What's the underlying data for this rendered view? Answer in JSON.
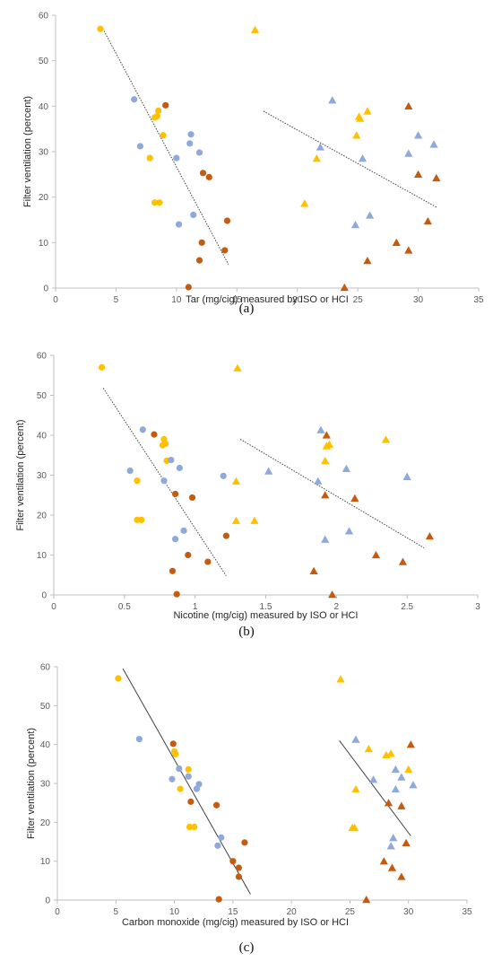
{
  "colors": {
    "yellow": "#FFC000",
    "blue": "#8EA9DB",
    "orange": "#C55A11",
    "axis": "#BFBFBF",
    "trend": "#404040"
  },
  "chart_data": [
    {
      "type": "scatter",
      "caption": "(a)",
      "xlabel": "Tar (mg/cig) measured by ISO or HCI",
      "ylabel": "Filter ventilation (percent)",
      "xlim": [
        0,
        35
      ],
      "ylim": [
        0,
        60
      ],
      "xticks": [
        "0",
        "5",
        "10",
        "15",
        "20",
        "25",
        "30",
        "35"
      ],
      "yticks": [
        "0",
        "10",
        "20",
        "30",
        "40",
        "50",
        "60"
      ],
      "series": [
        {
          "marker": "circle",
          "color": "yellow",
          "points": [
            [
              3.7,
              57
            ],
            [
              8.2,
              37.5
            ],
            [
              8.4,
              37.8
            ],
            [
              8.5,
              39
            ],
            [
              8.9,
              33.6
            ],
            [
              7.8,
              28.6
            ],
            [
              8.2,
              18.8
            ],
            [
              8.6,
              18.8
            ]
          ]
        },
        {
          "marker": "circle",
          "color": "blue",
          "points": [
            [
              6.5,
              41.5
            ],
            [
              7.0,
              31.2
            ],
            [
              11.2,
              33.8
            ],
            [
              11.1,
              31.8
            ],
            [
              11.9,
              29.8
            ],
            [
              10.0,
              28.6
            ],
            [
              11.4,
              16.1
            ],
            [
              10.2,
              14.0
            ]
          ]
        },
        {
          "marker": "circle",
          "color": "orange",
          "points": [
            [
              9.1,
              40.2
            ],
            [
              12.2,
              25.3
            ],
            [
              12.7,
              24.4
            ],
            [
              14.2,
              14.8
            ],
            [
              12.1,
              10.0
            ],
            [
              14.0,
              8.3
            ],
            [
              11.9,
              6.1
            ],
            [
              11.0,
              0.2
            ]
          ]
        },
        {
          "marker": "triangle",
          "color": "yellow",
          "points": [
            [
              16.5,
              56.8
            ],
            [
              25.8,
              38.9
            ],
            [
              25.1,
              37.7
            ],
            [
              25.2,
              37.3
            ],
            [
              24.9,
              33.6
            ],
            [
              21.6,
              28.5
            ],
            [
              20.6,
              18.6
            ]
          ]
        },
        {
          "marker": "triangle",
          "color": "blue",
          "points": [
            [
              22.9,
              41.3
            ],
            [
              21.9,
              31.0
            ],
            [
              30.0,
              33.6
            ],
            [
              31.3,
              31.6
            ],
            [
              29.2,
              29.6
            ],
            [
              25.4,
              28.5
            ],
            [
              26.0,
              16.0
            ],
            [
              24.8,
              13.9
            ]
          ]
        },
        {
          "marker": "triangle",
          "color": "orange",
          "points": [
            [
              29.2,
              40.0
            ],
            [
              30.0,
              25.0
            ],
            [
              31.5,
              24.2
            ],
            [
              30.8,
              14.7
            ],
            [
              28.2,
              10.0
            ],
            [
              29.2,
              8.3
            ],
            [
              25.8,
              6.0
            ],
            [
              23.9,
              0.1
            ]
          ]
        }
      ],
      "trendlines": [
        {
          "from": [
            3.8,
            57.6
          ],
          "to": [
            14.3,
            5.2
          ]
        },
        {
          "from": [
            17.2,
            38.9
          ],
          "to": [
            31.5,
            17.8
          ]
        }
      ]
    },
    {
      "type": "scatter",
      "caption": "(b)",
      "xlabel": "Nicotine (mg/cig) measured by ISO or HCI",
      "ylabel": "Filter ventilation (percent)",
      "xlim": [
        0,
        3
      ],
      "ylim": [
        0,
        60
      ],
      "xticks": [
        "0",
        "0.5",
        "1",
        "1.5",
        "2",
        "2.5",
        "3"
      ],
      "yticks": [
        "0",
        "10",
        "20",
        "30",
        "40",
        "50",
        "60"
      ],
      "series": [
        {
          "marker": "circle",
          "color": "yellow",
          "points": [
            [
              0.34,
              57
            ],
            [
              0.77,
              37.5
            ],
            [
              0.79,
              37.9
            ],
            [
              0.78,
              39
            ],
            [
              0.8,
              33.6
            ],
            [
              0.59,
              28.6
            ],
            [
              0.59,
              18.8
            ],
            [
              0.62,
              18.8
            ]
          ]
        },
        {
          "marker": "circle",
          "color": "blue",
          "points": [
            [
              0.63,
              41.4
            ],
            [
              0.54,
              31.1
            ],
            [
              0.83,
              33.8
            ],
            [
              0.89,
              31.8
            ],
            [
              1.2,
              29.8
            ],
            [
              0.78,
              28.6
            ],
            [
              0.92,
              16.1
            ],
            [
              0.86,
              14.0
            ]
          ]
        },
        {
          "marker": "circle",
          "color": "orange",
          "points": [
            [
              0.71,
              40.2
            ],
            [
              0.86,
              25.3
            ],
            [
              0.98,
              24.4
            ],
            [
              1.22,
              14.8
            ],
            [
              0.95,
              10.0
            ],
            [
              1.09,
              8.3
            ],
            [
              0.84,
              6.0
            ],
            [
              0.87,
              0.2
            ]
          ]
        },
        {
          "marker": "triangle",
          "color": "yellow",
          "points": [
            [
              1.3,
              56.8
            ],
            [
              2.35,
              38.9
            ],
            [
              1.95,
              37.7
            ],
            [
              1.93,
              37.3
            ],
            [
              1.92,
              33.6
            ],
            [
              1.29,
              28.5
            ],
            [
              1.29,
              18.6
            ],
            [
              1.42,
              18.6
            ]
          ]
        },
        {
          "marker": "triangle",
          "color": "blue",
          "points": [
            [
              1.89,
              41.3
            ],
            [
              1.52,
              31.0
            ],
            [
              2.07,
              31.6
            ],
            [
              2.5,
              29.6
            ],
            [
              1.87,
              28.5
            ],
            [
              2.09,
              16.0
            ],
            [
              1.92,
              13.9
            ]
          ]
        },
        {
          "marker": "triangle",
          "color": "orange",
          "points": [
            [
              1.93,
              40.0
            ],
            [
              1.92,
              25.0
            ],
            [
              2.13,
              24.2
            ],
            [
              2.66,
              14.7
            ],
            [
              2.28,
              10.0
            ],
            [
              2.47,
              8.3
            ],
            [
              1.84,
              6.0
            ],
            [
              1.97,
              0.1
            ]
          ]
        }
      ],
      "trendlines": [
        {
          "from": [
            0.35,
            51.8
          ],
          "to": [
            1.22,
            4.8
          ]
        },
        {
          "from": [
            1.32,
            39.0
          ],
          "to": [
            2.62,
            11.8
          ]
        }
      ]
    },
    {
      "type": "scatter",
      "caption": "(c)",
      "xlabel": "Carbon monoxide (mg/cig) measured by ISO or HCI",
      "ylabel": "Filter ventilation (percent)",
      "xlim": [
        0,
        35
      ],
      "ylim": [
        0,
        60
      ],
      "xticks": [
        "0",
        "5",
        "10",
        "15",
        "20",
        "25",
        "30",
        "35"
      ],
      "yticks": [
        "0",
        "10",
        "20",
        "30",
        "40",
        "50",
        "60"
      ],
      "series": [
        {
          "marker": "circle",
          "color": "yellow",
          "points": [
            [
              5.2,
              57
            ],
            [
              10.1,
              37.5
            ],
            [
              10.0,
              38.2
            ],
            [
              11.2,
              33.6
            ],
            [
              10.5,
              28.6
            ],
            [
              11.3,
              18.8
            ],
            [
              11.7,
              18.8
            ]
          ]
        },
        {
          "marker": "circle",
          "color": "blue",
          "points": [
            [
              7.0,
              41.4
            ],
            [
              10.4,
              33.8
            ],
            [
              11.2,
              31.8
            ],
            [
              9.8,
              31.1
            ],
            [
              12.1,
              29.8
            ],
            [
              11.9,
              28.6
            ],
            [
              14.0,
              16.1
            ],
            [
              13.7,
              14.0
            ]
          ]
        },
        {
          "marker": "circle",
          "color": "orange",
          "points": [
            [
              9.9,
              40.2
            ],
            [
              11.4,
              25.3
            ],
            [
              13.6,
              24.4
            ],
            [
              16.0,
              14.8
            ],
            [
              15.0,
              10.0
            ],
            [
              15.5,
              8.3
            ],
            [
              15.5,
              6.0
            ],
            [
              13.8,
              0.2
            ]
          ]
        },
        {
          "marker": "triangle",
          "color": "yellow",
          "points": [
            [
              24.2,
              56.8
            ],
            [
              26.6,
              38.9
            ],
            [
              28.1,
              37.3
            ],
            [
              28.5,
              37.7
            ],
            [
              30.0,
              33.6
            ],
            [
              25.5,
              28.5
            ],
            [
              25.2,
              18.6
            ],
            [
              25.4,
              18.6
            ]
          ]
        },
        {
          "marker": "triangle",
          "color": "blue",
          "points": [
            [
              25.5,
              41.3
            ],
            [
              28.9,
              33.6
            ],
            [
              29.4,
              31.6
            ],
            [
              27.0,
              31.0
            ],
            [
              30.4,
              29.6
            ],
            [
              28.9,
              28.5
            ],
            [
              28.7,
              16.0
            ],
            [
              28.5,
              13.9
            ]
          ]
        },
        {
          "marker": "triangle",
          "color": "orange",
          "points": [
            [
              30.2,
              40.0
            ],
            [
              28.3,
              25.0
            ],
            [
              29.4,
              24.2
            ],
            [
              29.8,
              14.7
            ],
            [
              27.9,
              10.0
            ],
            [
              28.6,
              8.3
            ],
            [
              29.4,
              6.0
            ],
            [
              26.4,
              0.1
            ]
          ]
        }
      ],
      "trendlines": [
        {
          "from": [
            5.6,
            59.5
          ],
          "to": [
            16.5,
            1.5
          ]
        },
        {
          "from": [
            24.1,
            41.0
          ],
          "to": [
            30.2,
            16.5
          ]
        }
      ]
    }
  ]
}
